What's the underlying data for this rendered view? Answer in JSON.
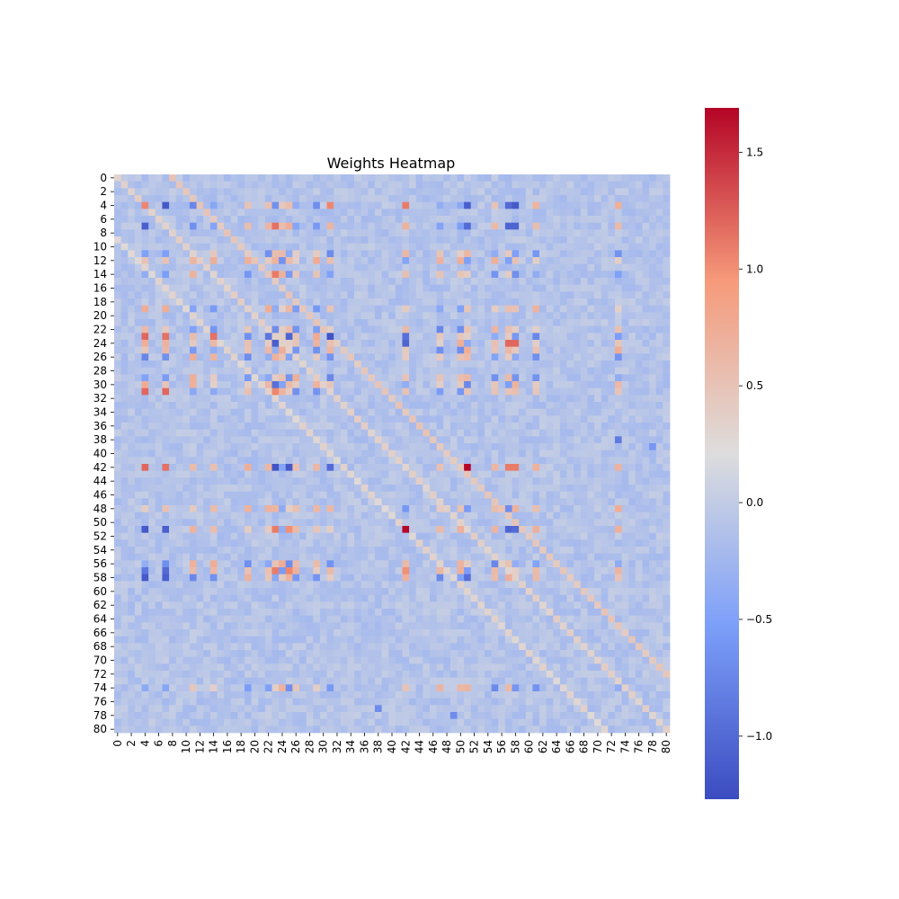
{
  "chart_data": {
    "type": "heatmap",
    "title": "Weights Heatmap",
    "xlabel": "",
    "ylabel": "",
    "n": 81,
    "x_tick_labels": [
      "0",
      "2",
      "4",
      "6",
      "8",
      "10",
      "12",
      "14",
      "16",
      "18",
      "20",
      "22",
      "24",
      "26",
      "28",
      "30",
      "32",
      "34",
      "36",
      "38",
      "40",
      "42",
      "44",
      "46",
      "48",
      "50",
      "52",
      "54",
      "56",
      "58",
      "60",
      "62",
      "64",
      "66",
      "68",
      "70",
      "72",
      "74",
      "76",
      "78",
      "80"
    ],
    "y_tick_labels": [
      "0",
      "2",
      "4",
      "6",
      "8",
      "10",
      "12",
      "14",
      "16",
      "18",
      "20",
      "22",
      "24",
      "26",
      "28",
      "30",
      "32",
      "34",
      "36",
      "38",
      "40",
      "42",
      "44",
      "46",
      "48",
      "50",
      "52",
      "54",
      "56",
      "58",
      "60",
      "62",
      "64",
      "66",
      "68",
      "70",
      "72",
      "74",
      "76",
      "78",
      "80"
    ],
    "colormap": "coolwarm",
    "vmin": -1.27,
    "vmax": 1.69,
    "colorbar_ticks": [
      1.5,
      1.0,
      0.5,
      0.0,
      -0.5,
      -1.0
    ],
    "colorbar_tick_labels": [
      "1.5",
      "1.0",
      "0.5",
      "0.0",
      "−0.5",
      "−1.0"
    ],
    "background_value": -0.1,
    "noise_amplitude": 0.12,
    "diagonals": [
      {
        "offset": 8,
        "value": 0.45
      },
      {
        "offset": 0,
        "value": 0.35
      },
      {
        "offset": -9,
        "value": 0.3
      }
    ],
    "hot_rows": [
      4,
      7,
      11,
      12,
      14,
      19,
      22,
      23,
      24,
      25,
      26,
      29,
      30,
      31,
      42,
      48,
      51,
      56,
      57,
      58,
      74
    ],
    "hot_cols": [
      4,
      7,
      11,
      14,
      19,
      22,
      23,
      24,
      25,
      26,
      29,
      31,
      42,
      47,
      50,
      51,
      55,
      57,
      58,
      61,
      73
    ],
    "notable_cells": [
      {
        "r": 42,
        "c": 51,
        "v": 1.68
      },
      {
        "r": 51,
        "c": 42,
        "v": 1.68
      },
      {
        "r": 4,
        "c": 7,
        "v": -1.15
      },
      {
        "r": 4,
        "c": 51,
        "v": -1.1
      },
      {
        "r": 4,
        "c": 57,
        "v": -1.0
      },
      {
        "r": 4,
        "c": 58,
        "v": -1.15
      },
      {
        "r": 4,
        "c": 4,
        "v": 1.05
      },
      {
        "r": 4,
        "c": 42,
        "v": 1.1
      },
      {
        "r": 4,
        "c": 31,
        "v": 1.05
      },
      {
        "r": 7,
        "c": 4,
        "v": -1.1
      },
      {
        "r": 7,
        "c": 23,
        "v": 1.15
      },
      {
        "r": 7,
        "c": 51,
        "v": -1.0
      },
      {
        "r": 7,
        "c": 57,
        "v": -1.05
      },
      {
        "r": 7,
        "c": 58,
        "v": -1.05
      },
      {
        "r": 14,
        "c": 23,
        "v": 1.1
      },
      {
        "r": 23,
        "c": 4,
        "v": 1.2
      },
      {
        "r": 23,
        "c": 7,
        "v": 1.15
      },
      {
        "r": 23,
        "c": 14,
        "v": 1.15
      },
      {
        "r": 23,
        "c": 22,
        "v": -0.9
      },
      {
        "r": 23,
        "c": 25,
        "v": -1.05
      },
      {
        "r": 23,
        "c": 31,
        "v": -1.2
      },
      {
        "r": 23,
        "c": 42,
        "v": -0.95
      },
      {
        "r": 24,
        "c": 23,
        "v": -1.1
      },
      {
        "r": 24,
        "c": 42,
        "v": -1.05
      },
      {
        "r": 24,
        "c": 57,
        "v": 1.2
      },
      {
        "r": 24,
        "c": 58,
        "v": 1.2
      },
      {
        "r": 30,
        "c": 23,
        "v": -0.95
      },
      {
        "r": 31,
        "c": 4,
        "v": 1.2
      },
      {
        "r": 31,
        "c": 7,
        "v": 1.2
      },
      {
        "r": 31,
        "c": 23,
        "v": 1.05
      },
      {
        "r": 42,
        "c": 4,
        "v": 1.2
      },
      {
        "r": 42,
        "c": 7,
        "v": 1.15
      },
      {
        "r": 42,
        "c": 23,
        "v": -1.2
      },
      {
        "r": 42,
        "c": 25,
        "v": -1.15
      },
      {
        "r": 42,
        "c": 31,
        "v": -1.0
      },
      {
        "r": 42,
        "c": 57,
        "v": 1.1
      },
      {
        "r": 42,
        "c": 58,
        "v": 1.1
      },
      {
        "r": 51,
        "c": 4,
        "v": -1.15
      },
      {
        "r": 51,
        "c": 7,
        "v": -1.1
      },
      {
        "r": 51,
        "c": 23,
        "v": 1.1
      },
      {
        "r": 51,
        "c": 25,
        "v": 1.0
      },
      {
        "r": 51,
        "c": 57,
        "v": -1.05
      },
      {
        "r": 51,
        "c": 58,
        "v": -1.0
      },
      {
        "r": 57,
        "c": 4,
        "v": -0.9
      },
      {
        "r": 57,
        "c": 7,
        "v": -1.0
      },
      {
        "r": 57,
        "c": 23,
        "v": 1.1
      },
      {
        "r": 57,
        "c": 25,
        "v": 1.05
      },
      {
        "r": 57,
        "c": 42,
        "v": 1.0
      },
      {
        "r": 58,
        "c": 4,
        "v": -1.15
      },
      {
        "r": 58,
        "c": 7,
        "v": -1.1
      },
      {
        "r": 58,
        "c": 51,
        "v": -0.95
      },
      {
        "r": 38,
        "c": 73,
        "v": -0.85
      },
      {
        "r": 39,
        "c": 78,
        "v": -0.6
      },
      {
        "r": 77,
        "c": 38,
        "v": -0.7
      },
      {
        "r": 78,
        "c": 49,
        "v": -0.7
      }
    ]
  }
}
